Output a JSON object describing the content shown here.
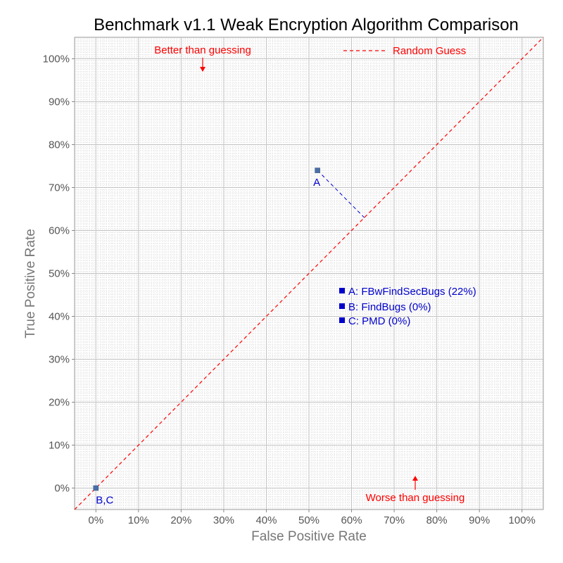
{
  "chart_data": {
    "type": "scatter",
    "title": "Benchmark v1.1 Weak Encryption Algorithm Comparison",
    "xlabel": "False Positive Rate",
    "ylabel": "True Positive Rate",
    "xlim": [
      -0.05,
      1.05
    ],
    "ylim": [
      -0.05,
      1.05
    ],
    "x_ticks": [
      "0%",
      "10%",
      "20%",
      "30%",
      "40%",
      "50%",
      "60%",
      "70%",
      "80%",
      "90%",
      "100%"
    ],
    "y_ticks": [
      "0%",
      "10%",
      "20%",
      "30%",
      "40%",
      "50%",
      "60%",
      "70%",
      "80%",
      "90%",
      "100%"
    ],
    "grid": true,
    "points": [
      {
        "label": "A",
        "x": 0.52,
        "y": 0.74
      },
      {
        "label": "B,C",
        "x": 0.0,
        "y": 0.0
      }
    ],
    "reference_line": {
      "name": "Random Guess",
      "color": "#ff0000",
      "style": "dashed"
    },
    "annotations": {
      "better": "Better than guessing",
      "worse": "Worse than guessing"
    },
    "legend_entries": [
      "A: FBwFindSecBugs (22%)",
      "B: FindBugs (0%)",
      "C: PMD (0%)"
    ],
    "colors": {
      "points": "#4a6fa5",
      "labels": "#0000cc",
      "guess_line": "#ff0000"
    }
  }
}
